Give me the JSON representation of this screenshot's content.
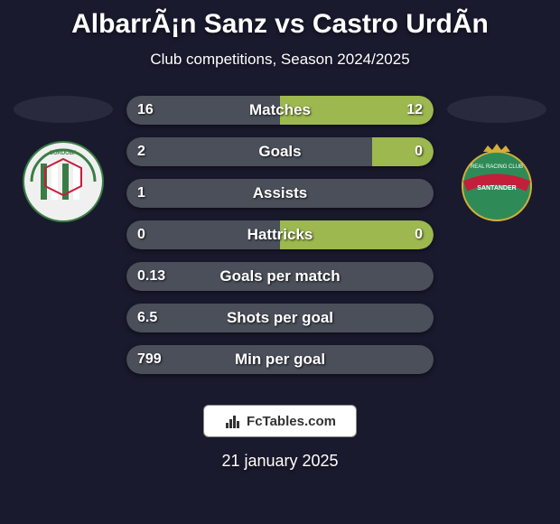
{
  "title": "AlbarrÃ¡n Sanz vs Castro UrdÃ­n",
  "subtitle": "Club competitions, Season 2024/2025",
  "date": "21 january 2025",
  "fctables_label": "FcTables.com",
  "colors": {
    "background": "#1a1a2e",
    "bar_bg": "#0d0d1a",
    "left_fill": "#4a4f5a",
    "right_fill": "#9db84e",
    "ellipse": "#2a2a3e"
  },
  "left_badge": {
    "bg": "#f0f0f0",
    "stripes": [
      "#3a7d44",
      "#ffffff"
    ],
    "arc": "#c41e3a"
  },
  "right_badge": {
    "bg": "#2e8b57",
    "crown": "#d4af37",
    "band": "#c41e3a"
  },
  "bars": [
    {
      "label": "Matches",
      "left_val": "16",
      "right_val": "12",
      "left_pct": 50,
      "right_pct": 50
    },
    {
      "label": "Goals",
      "left_val": "2",
      "right_val": "0",
      "left_pct": 80,
      "right_pct": 20
    },
    {
      "label": "Assists",
      "left_val": "1",
      "right_val": "",
      "left_pct": 100,
      "right_pct": 0
    },
    {
      "label": "Hattricks",
      "left_val": "0",
      "right_val": "0",
      "left_pct": 50,
      "right_pct": 50
    },
    {
      "label": "Goals per match",
      "left_val": "0.13",
      "right_val": "",
      "left_pct": 100,
      "right_pct": 0
    },
    {
      "label": "Shots per goal",
      "left_val": "6.5",
      "right_val": "",
      "left_pct": 100,
      "right_pct": 0
    },
    {
      "label": "Min per goal",
      "left_val": "799",
      "right_val": "",
      "left_pct": 100,
      "right_pct": 0
    }
  ]
}
